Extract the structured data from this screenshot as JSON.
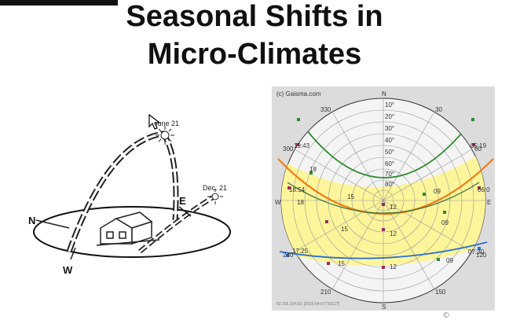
{
  "slide": {
    "title_line1": "Seasonal Shifts in",
    "title_line2": "Micro-Climates"
  },
  "illustration": {
    "label_june": "June 21",
    "label_dec": "Dec. 21",
    "label_n": "N",
    "label_e": "E",
    "label_w": "W"
  },
  "sunchart": {
    "copyright": "(c) Gaisma.com",
    "footer": "63.106.164.63, [2016-04-07T10127]",
    "compass": {
      "n": "N",
      "s": "S",
      "e": "E",
      "w": "W"
    },
    "azimuth_labels": [
      "330",
      "30",
      "300",
      "60",
      "240",
      "120",
      "210",
      "150"
    ],
    "altitude_labels": [
      "10°",
      "20°",
      "30°",
      "40°",
      "50°",
      "60°",
      "70°",
      "80°"
    ],
    "times": {
      "summer_left": "19:43",
      "summer_right": "05:19",
      "equinox_left": "18:54",
      "equinox_right": "06:0",
      "winter_left": "17:25",
      "winter_right": "07:30"
    },
    "hour_labels": {
      "s18a": "18",
      "s15": "15",
      "s12": "12",
      "s09": "09",
      "e18": "18",
      "e15": "15",
      "e12": "12",
      "e09": "09",
      "w15": "15",
      "w12": "12",
      "w09": "09"
    },
    "colors": {
      "summer": "#2a8a2a",
      "equinox": "#f07c12",
      "winter": "#2a6fd1",
      "fill": "#fdf59a"
    }
  },
  "misc": {
    "corner": "©"
  }
}
